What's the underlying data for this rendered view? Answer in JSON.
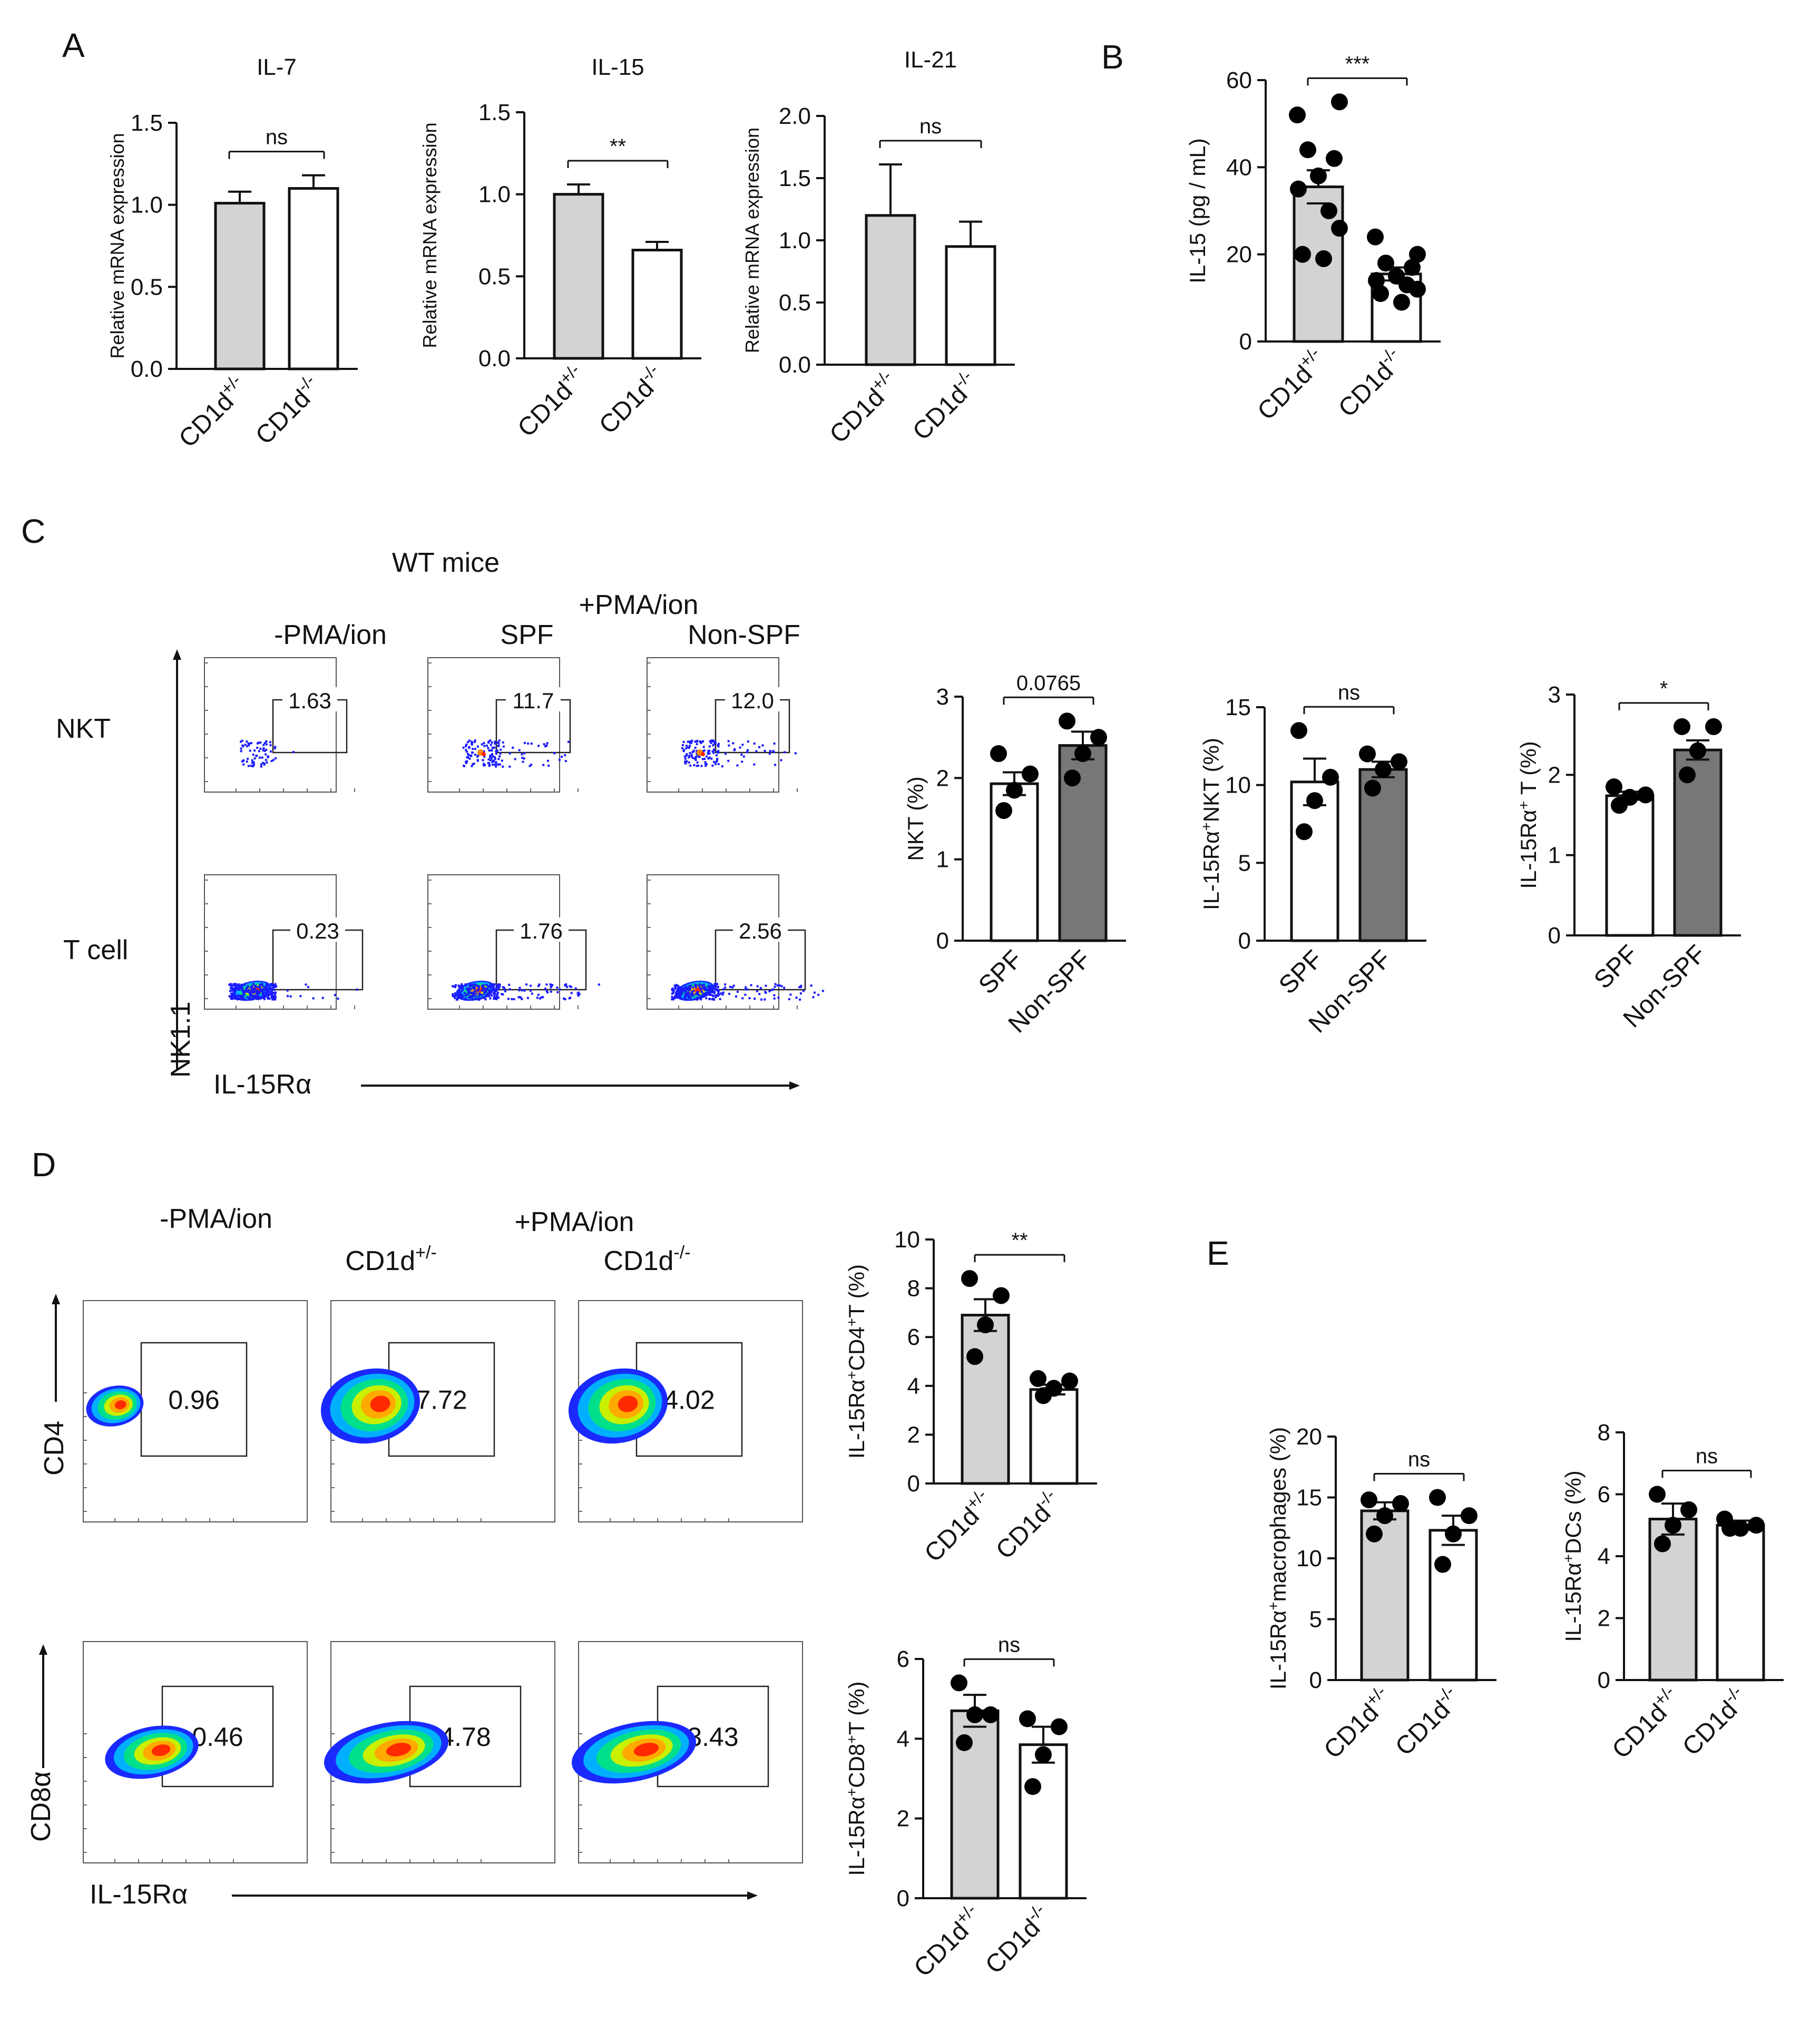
{
  "panel_labels": {
    "A": "A",
    "B": "B",
    "C": "C",
    "D": "D",
    "E": "E"
  },
  "panel_C": {
    "title": "WT mice",
    "plus_label": "+PMA/ion",
    "col_labels": [
      "-PMA/ion",
      "SPF",
      "Non-SPF"
    ],
    "row_labels": [
      "NKT",
      "T cell"
    ],
    "gates": [
      [
        "1.63",
        "11.7",
        "12.0"
      ],
      [
        "0.23",
        "1.76",
        "2.56"
      ]
    ],
    "ylabel": "NK1.1",
    "xlabel": "IL-15Rα"
  },
  "panel_D": {
    "minus_label": "-PMA/ion",
    "plus_label": "+PMA/ion",
    "col_labels": [
      {
        "base": "CD1d",
        "sup": "+/-"
      },
      {
        "base": "CD1d",
        "sup": "-/-"
      }
    ],
    "row_labels": [
      "CD4",
      "CD8α"
    ],
    "gates": [
      [
        "0.96",
        "7.72",
        "4.02"
      ],
      [
        "0.46",
        "4.78",
        "3.43"
      ]
    ],
    "xlabel": "IL-15Rα"
  },
  "colors": {
    "wt_bar": "#d3d3d3",
    "ko_bar": "#ffffff",
    "nonspf_bar": "#777777",
    "dot": "#000000",
    "axis": "#111111",
    "flow_blue": "#1a1aff"
  },
  "chart_data": [
    {
      "id": "A-IL7",
      "type": "bar",
      "title": "IL-7",
      "ylabel": "Relative mRNA expression",
      "categories": [
        {
          "base": "CD1d",
          "sup": "+/-"
        },
        {
          "base": "CD1d",
          "sup": "-/-"
        }
      ],
      "values": [
        1.01,
        1.1
      ],
      "errors": [
        0.07,
        0.08
      ],
      "ylim": [
        0,
        1.5
      ],
      "yticks": [
        "0.0",
        "0.5",
        "1.0",
        "1.5"
      ],
      "significance": "ns"
    },
    {
      "id": "A-IL15",
      "type": "bar",
      "title": "IL-15",
      "ylabel": "Relative mRNA expression",
      "categories": [
        {
          "base": "CD1d",
          "sup": "+/-"
        },
        {
          "base": "CD1d",
          "sup": "-/-"
        }
      ],
      "values": [
        1.0,
        0.66
      ],
      "errors": [
        0.06,
        0.05
      ],
      "ylim": [
        0,
        1.5
      ],
      "yticks": [
        "0.0",
        "0.5",
        "1.0",
        "1.5"
      ],
      "significance": "**"
    },
    {
      "id": "A-IL21",
      "type": "bar",
      "title": "IL-21",
      "ylabel": "Relative mRNA expression",
      "categories": [
        {
          "base": "CD1d",
          "sup": "+/-"
        },
        {
          "base": "CD1d",
          "sup": "-/-"
        }
      ],
      "values": [
        1.2,
        0.95
      ],
      "errors": [
        0.41,
        0.2
      ],
      "ylim": [
        0,
        2.0
      ],
      "yticks": [
        "0.0",
        "0.5",
        "1.0",
        "1.5",
        "2.0"
      ],
      "significance": "ns"
    },
    {
      "id": "B",
      "type": "bar",
      "title": "",
      "ylabel": "IL-15 (pg / mL)",
      "categories": [
        {
          "base": "CD1d",
          "sup": "+/-"
        },
        {
          "base": "CD1d",
          "sup": "-/-"
        }
      ],
      "values": [
        35.5,
        15.5
      ],
      "errors": [
        3.8,
        1.5
      ],
      "ylim": [
        0,
        60
      ],
      "yticks": [
        "0",
        "20",
        "40",
        "60"
      ],
      "significance": "***",
      "points": [
        [
          52,
          55,
          44,
          42,
          38,
          35,
          30,
          26,
          20,
          19
        ],
        [
          24,
          20,
          18,
          17,
          15,
          14,
          13,
          12,
          11,
          9
        ]
      ]
    },
    {
      "id": "C-NKT",
      "type": "bar",
      "title": "",
      "ylabel": "NKT (%)",
      "categories": [
        "SPF",
        "Non-SPF"
      ],
      "values": [
        1.93,
        2.4
      ],
      "errors": [
        0.14,
        0.17
      ],
      "ylim": [
        0,
        3
      ],
      "yticks": [
        "0",
        "1",
        "2",
        "3"
      ],
      "significance": "0.0765",
      "points": [
        [
          2.3,
          2.05,
          1.85,
          1.6
        ],
        [
          2.7,
          2.5,
          2.3,
          2.0
        ]
      ]
    },
    {
      "id": "C-NKT-IL15Ra",
      "type": "bar",
      "title": "",
      "ylabel": "IL-15Rα⁺NKT (%)",
      "categories": [
        "SPF",
        "Non-SPF"
      ],
      "values": [
        10.2,
        11.0
      ],
      "errors": [
        1.5,
        0.5
      ],
      "ylim": [
        0,
        15
      ],
      "yticks": [
        "0",
        "5",
        "10",
        "15"
      ],
      "significance": "ns",
      "points": [
        [
          13.5,
          10.5,
          9.0,
          7.0
        ],
        [
          12.0,
          11.5,
          11.0,
          9.8
        ]
      ]
    },
    {
      "id": "C-T-IL15Ra",
      "type": "bar",
      "title": "",
      "ylabel": "IL-15Rα⁺ T (%)",
      "categories": [
        "SPF",
        "Non-SPF"
      ],
      "values": [
        1.74,
        2.31
      ],
      "errors": [
        0.05,
        0.12
      ],
      "ylim": [
        0,
        3
      ],
      "yticks": [
        "0",
        "1",
        "2",
        "3"
      ],
      "significance": "*",
      "points": [
        [
          1.85,
          1.75,
          1.72,
          1.62
        ],
        [
          2.6,
          2.6,
          2.3,
          2.0
        ]
      ]
    },
    {
      "id": "D-CD4",
      "type": "bar",
      "title": "",
      "ylabel": "IL-15Rα⁺CD4⁺T (%)",
      "categories": [
        {
          "base": "CD1d",
          "sup": "+/-"
        },
        {
          "base": "CD1d",
          "sup": "-/-"
        }
      ],
      "values": [
        6.9,
        3.85
      ],
      "errors": [
        0.65,
        0.2
      ],
      "ylim": [
        0,
        10
      ],
      "yticks": [
        "0",
        "2",
        "4",
        "6",
        "8",
        "10"
      ],
      "significance": "**",
      "points": [
        [
          8.4,
          7.7,
          6.5,
          5.2
        ],
        [
          4.3,
          4.2,
          3.9,
          3.6
        ]
      ]
    },
    {
      "id": "D-CD8",
      "type": "bar",
      "title": "",
      "ylabel": "IL-15Rα⁺CD8⁺T (%)",
      "categories": [
        {
          "base": "CD1d",
          "sup": "+/-"
        },
        {
          "base": "CD1d",
          "sup": "-/-"
        }
      ],
      "values": [
        4.7,
        3.85
      ],
      "errors": [
        0.4,
        0.45
      ],
      "ylim": [
        0,
        6
      ],
      "yticks": [
        "0",
        "2",
        "4",
        "6"
      ],
      "significance": "ns",
      "points": [
        [
          5.4,
          4.6,
          4.6,
          3.9
        ],
        [
          4.5,
          4.3,
          3.6,
          2.8
        ]
      ]
    },
    {
      "id": "E-mac",
      "type": "bar",
      "title": "",
      "ylabel": "IL-15Rα⁺macrophages (%)",
      "categories": [
        {
          "base": "CD1d",
          "sup": "+/-"
        },
        {
          "base": "CD1d",
          "sup": "-/-"
        }
      ],
      "values": [
        13.9,
        12.3
      ],
      "errors": [
        0.7,
        1.2
      ],
      "ylim": [
        0,
        20
      ],
      "yticks": [
        "0",
        "5",
        "10",
        "15",
        "20"
      ],
      "significance": "ns",
      "points": [
        [
          14.8,
          14.5,
          13.5,
          12.0
        ],
        [
          15.0,
          13.5,
          12.0,
          9.5
        ]
      ]
    },
    {
      "id": "E-DC",
      "type": "bar",
      "title": "",
      "ylabel": "IL-15Rα⁺DCs (%)",
      "categories": [
        {
          "base": "CD1d",
          "sup": "+/-"
        },
        {
          "base": "CD1d",
          "sup": "-/-"
        }
      ],
      "values": [
        5.2,
        5.0
      ],
      "errors": [
        0.5,
        0.15
      ],
      "ylim": [
        0,
        8
      ],
      "yticks": [
        "0",
        "2",
        "4",
        "6",
        "8"
      ],
      "significance": "ns",
      "points": [
        [
          6.0,
          5.5,
          5.0,
          4.4
        ],
        [
          5.2,
          5.0,
          4.9,
          4.9
        ]
      ]
    }
  ]
}
